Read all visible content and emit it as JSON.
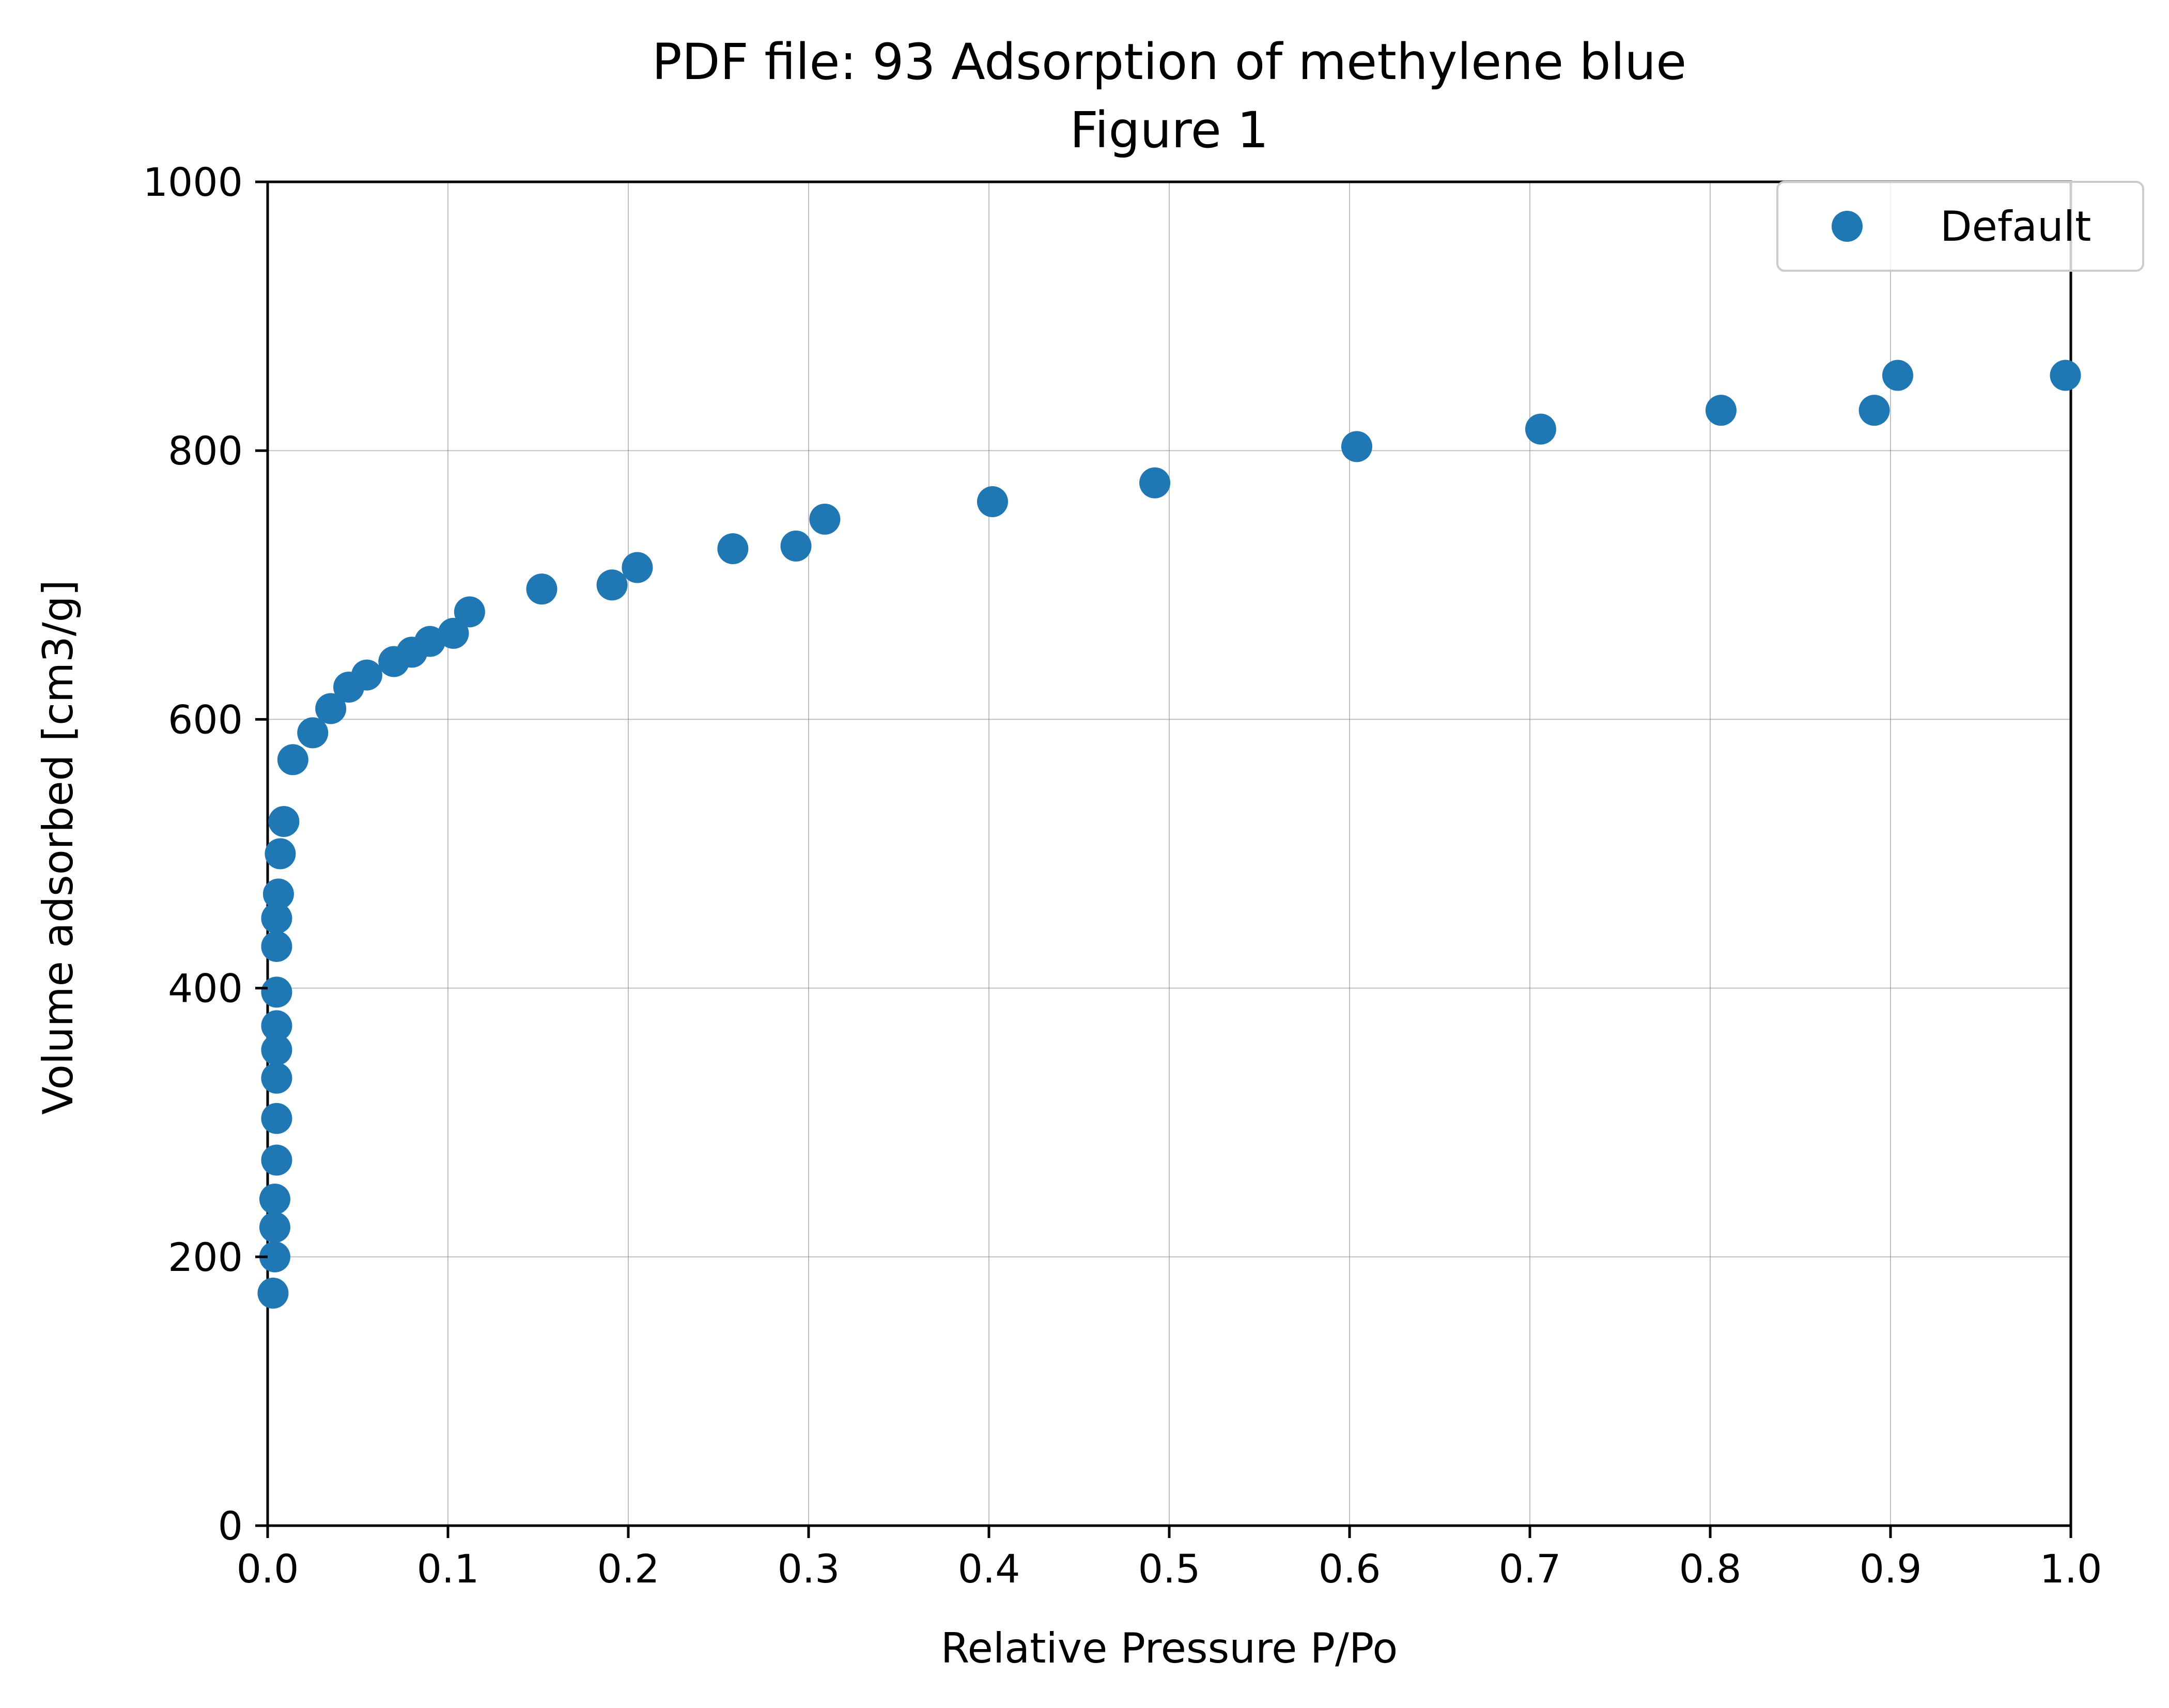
{
  "chart_data": {
    "type": "scatter",
    "title": "PDF file: 93 Adsorption of methylene blue",
    "subtitle": "Figure 1",
    "xlabel": "Relative Pressure P/Po",
    "ylabel": "Volume adsorbed [cm3/g]",
    "xlim": [
      0.0,
      1.0
    ],
    "ylim": [
      0,
      1000
    ],
    "xticks": [
      0.0,
      0.1,
      0.2,
      0.3,
      0.4,
      0.5,
      0.6,
      0.7,
      0.8,
      0.9,
      1.0
    ],
    "xtick_labels": [
      "0.0",
      "0.1",
      "0.2",
      "0.3",
      "0.4",
      "0.5",
      "0.6",
      "0.7",
      "0.8",
      "0.9",
      "1.0"
    ],
    "yticks": [
      0,
      200,
      400,
      600,
      800,
      1000
    ],
    "ytick_labels": [
      "0",
      "200",
      "400",
      "600",
      "800",
      "1000"
    ],
    "grid": true,
    "legend_position": "top-right",
    "series": [
      {
        "name": "Default",
        "color": "#1f77b4",
        "x": [
          0.003,
          0.004,
          0.004,
          0.004,
          0.005,
          0.005,
          0.005,
          0.005,
          0.005,
          0.005,
          0.005,
          0.005,
          0.006,
          0.007,
          0.009,
          0.014,
          0.025,
          0.035,
          0.045,
          0.055,
          0.07,
          0.08,
          0.09,
          0.103,
          0.112,
          0.152,
          0.191,
          0.205,
          0.258,
          0.293,
          0.309,
          0.402,
          0.492,
          0.604,
          0.706,
          0.806,
          0.891,
          0.904,
          0.997
        ],
        "y": [
          173,
          200,
          222,
          243,
          272,
          303,
          333,
          354,
          372,
          397,
          431,
          452,
          470,
          500,
          524,
          570,
          590,
          608,
          624,
          633,
          643,
          650,
          658,
          664,
          680,
          697,
          700,
          713,
          727,
          729,
          749,
          762,
          776,
          803,
          816,
          830,
          830,
          856,
          856
        ]
      }
    ]
  }
}
